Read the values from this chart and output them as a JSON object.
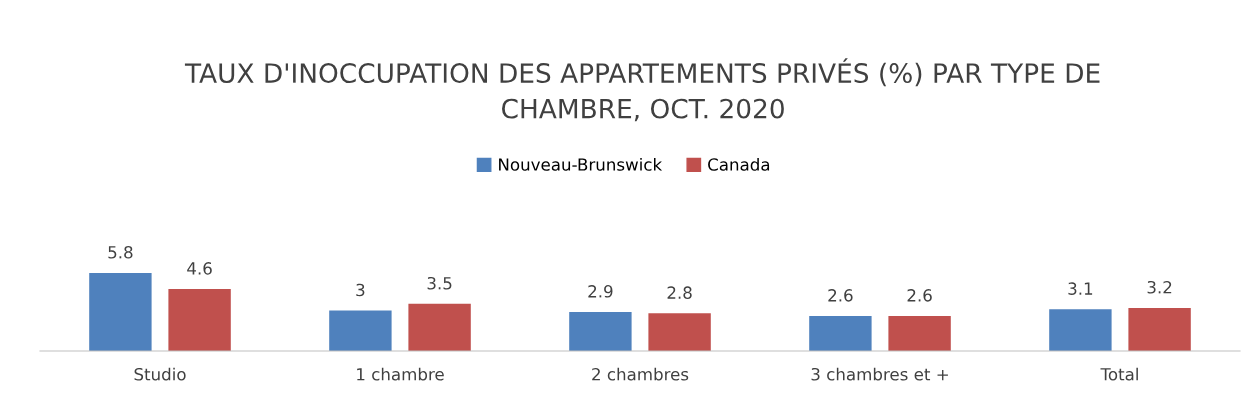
{
  "chart_data": {
    "type": "bar",
    "title": "TAUX D'INOCCUPATION DES APPARTEMENTS PRIVÉS (%) PAR TYPE DE CHAMBRE, OCT. 2020",
    "categories": [
      "Studio",
      "1 chambre",
      "2 chambres",
      "3 chambres et +",
      "Total"
    ],
    "series": [
      {
        "name": "Nouveau-Brunswick",
        "color": "#4f81bd",
        "values": [
          5.8,
          3,
          2.9,
          2.6,
          3.1
        ]
      },
      {
        "name": "Canada",
        "color": "#c0504d",
        "values": [
          4.6,
          3.5,
          2.8,
          2.6,
          3.2
        ]
      }
    ],
    "data_labels": true,
    "legend": "top",
    "grid": false
  }
}
